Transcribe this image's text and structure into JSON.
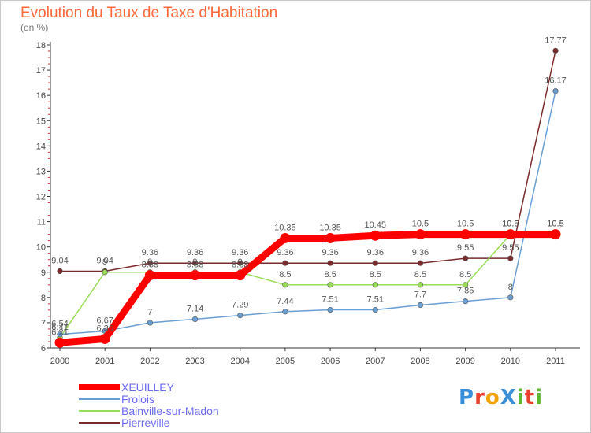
{
  "header": {
    "title": "Evolution du Taux de Taxe d'Habitation",
    "subtitle": "(en %)"
  },
  "chart_data": {
    "type": "line",
    "x": [
      "2000",
      "2001",
      "2002",
      "2003",
      "2004",
      "2005",
      "2006",
      "2007",
      "2008",
      "2009",
      "2010",
      "2011"
    ],
    "ylim": [
      6,
      18
    ],
    "yticks": [
      6,
      7,
      8,
      9,
      10,
      11,
      12,
      13,
      14,
      15,
      16,
      17,
      18
    ],
    "grid": false,
    "legend_position": "bottom-left",
    "series": [
      {
        "name": "XEUILLEY",
        "color": "#ff0000",
        "values": [
          6.21,
          6.36,
          8.88,
          8.88,
          8.88,
          10.35,
          10.35,
          10.45,
          10.5,
          10.5,
          10.5,
          10.5
        ]
      },
      {
        "name": "Frolois",
        "color": "#6a9fd4",
        "values": [
          6.54,
          6.67,
          7,
          7.14,
          7.29,
          7.44,
          7.51,
          7.51,
          7.7,
          7.85,
          8,
          16.17
        ]
      },
      {
        "name": "Bainville-sur-Madon",
        "color": "#99dd55",
        "values": [
          6.41,
          9,
          9,
          9,
          9,
          8.5,
          8.5,
          8.5,
          8.5,
          8.5,
          10.5,
          10.5
        ]
      },
      {
        "name": "Pierreville",
        "color": "#7a2a2a",
        "values": [
          9.04,
          9.04,
          9.36,
          9.36,
          9.36,
          9.36,
          9.36,
          9.36,
          9.36,
          9.55,
          9.55,
          17.77
        ]
      }
    ],
    "data_labels": [
      [
        "6.21",
        "6.36",
        "8.88",
        "8.88",
        "8.88",
        "10.35",
        "10.35",
        "10.45",
        "10.5",
        "10.5",
        "10.5",
        "10.5"
      ],
      [
        "6.54",
        "6.67",
        "7",
        "7.14",
        "7.29",
        "7.44",
        "7.51",
        "7.51",
        "7.7",
        "7.85",
        "8",
        "16.17"
      ],
      [
        "6.41",
        "9",
        "9",
        "9",
        "9",
        "8.5",
        "8.5",
        "8.5",
        "8.5",
        "8.5",
        "10.5",
        "10.5"
      ],
      [
        "9.04",
        "9.04",
        "9.36",
        "9.36",
        "9.36",
        "9.36",
        "9.36",
        "9.36",
        "9.36",
        "9.55",
        "9.55",
        "17.77"
      ]
    ]
  },
  "logo": {
    "text": "ProXiti",
    "letter_colors": [
      "#3a8fd8",
      "#e8412c",
      "#f2a100",
      "#3a8fd8",
      "#5cb82e",
      "#e8412c",
      "#5cb82e"
    ]
  }
}
